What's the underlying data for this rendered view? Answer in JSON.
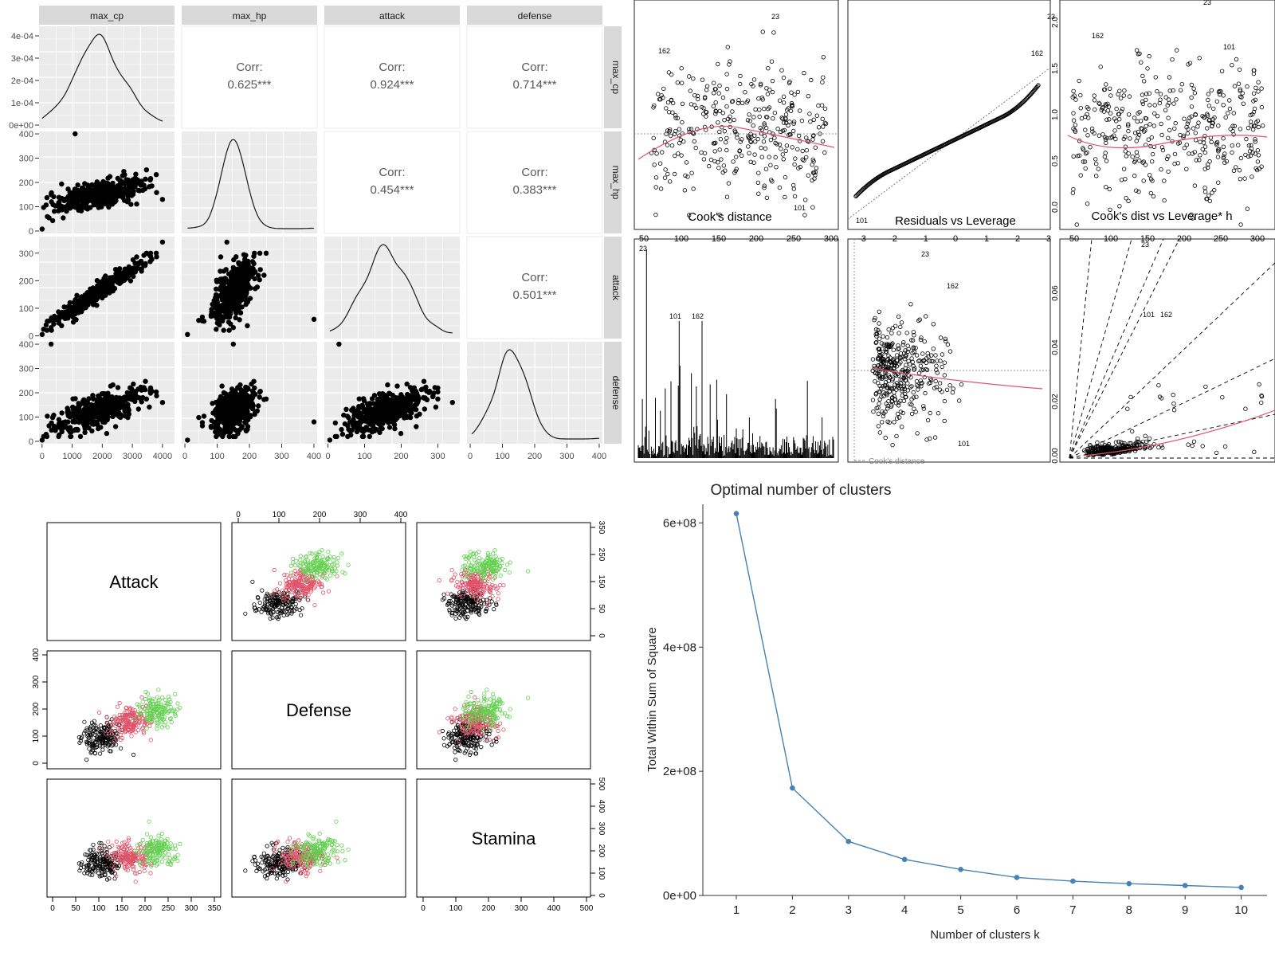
{
  "chart_data": [
    {
      "id": "pairs_ggpairs",
      "type": "scatter",
      "title": "",
      "variables": [
        "max_cp",
        "max_hp",
        "attack",
        "defense"
      ],
      "correlations": [
        {
          "row": "max_cp",
          "col": "max_hp",
          "label": "Corr:",
          "value": "0.625***"
        },
        {
          "row": "max_cp",
          "col": "attack",
          "label": "Corr:",
          "value": "0.924***"
        },
        {
          "row": "max_cp",
          "col": "defense",
          "label": "Corr:",
          "value": "0.714***"
        },
        {
          "row": "max_hp",
          "col": "attack",
          "label": "Corr:",
          "value": "0.454***"
        },
        {
          "row": "max_hp",
          "col": "defense",
          "label": "Corr:",
          "value": "0.383***"
        },
        {
          "row": "attack",
          "col": "defense",
          "label": "Corr:",
          "value": "0.501***"
        }
      ],
      "density_y_ticks": [
        "4e-04",
        "3e-04",
        "2e-04",
        "1e-04",
        "0e+00"
      ],
      "y_ticks": {
        "max_hp": [
          "400",
          "300",
          "200",
          "100",
          "0"
        ],
        "attack": [
          "300",
          "200",
          "100",
          "0"
        ],
        "defense": [
          "400",
          "300",
          "200",
          "100",
          "0"
        ]
      },
      "x_ticks": {
        "max_cp": [
          "0",
          "1000",
          "2000",
          "3000",
          "4000"
        ],
        "max_hp": [
          "0",
          "100",
          "200",
          "300",
          "400"
        ],
        "attack": [
          "0",
          "100",
          "200",
          "300"
        ],
        "defense": [
          "0",
          "100",
          "200",
          "300",
          "400"
        ]
      }
    },
    {
      "id": "regression_diagnostics",
      "type": "scatter",
      "panels": [
        {
          "title": "Cook's distance",
          "x_ticks": [
            "50",
            "100",
            "150",
            "200",
            "250",
            "300"
          ],
          "labels": [
            "23",
            "162",
            "101"
          ]
        },
        {
          "title": "Residuals vs Leverage",
          "x_ticks": [
            "-3",
            "-2",
            "-1",
            "0",
            "1",
            "2",
            "3"
          ],
          "labels": [
            "23",
            "162",
            "101"
          ]
        },
        {
          "title": "Cook's dist vs Leverage* h",
          "x_ticks": [
            "50",
            "100",
            "150",
            "200",
            "250",
            "300"
          ],
          "y_ticks": [
            "2.0",
            "1.5",
            "1.0",
            "0.5",
            "0.0"
          ],
          "labels": [
            "23",
            "162",
            "101"
          ]
        },
        {
          "title": "",
          "labels": [
            "23",
            "101",
            "162"
          ]
        },
        {
          "title": "",
          "legend": "Cook's distance",
          "labels": [
            "23",
            "162",
            "101"
          ]
        },
        {
          "title": "",
          "y_ticks": [
            "0.06",
            "0.04",
            "0.02",
            "0.00"
          ],
          "labels": [
            "23",
            "162",
            "101"
          ]
        }
      ]
    },
    {
      "id": "cluster_pairs",
      "type": "scatter",
      "variables": [
        "Attack",
        "Defense",
        "Stamina"
      ],
      "cluster_colors": [
        "#000000",
        "#DF536B",
        "#61D04F"
      ],
      "top_ticks": [
        "0",
        "100",
        "200",
        "300",
        "400"
      ],
      "right_ticks_row1": [
        "350",
        "250",
        "150",
        "50",
        "0"
      ],
      "left_ticks_row2": [
        "400",
        "300",
        "200",
        "100",
        "0"
      ],
      "right_ticks_row3": [
        "500",
        "400",
        "300",
        "200",
        "100",
        "0"
      ],
      "bottom_ticks_col1": [
        "0",
        "50",
        "100",
        "150",
        "200",
        "250",
        "300",
        "350"
      ],
      "bottom_ticks_col3": [
        "0",
        "100",
        "200",
        "300",
        "400",
        "500"
      ]
    },
    {
      "id": "elbow",
      "type": "line",
      "title": "Optimal number of clusters",
      "xlabel": "Number of clusters k",
      "ylabel": "Total Within Sum of Square",
      "x": [
        1,
        2,
        3,
        4,
        5,
        6,
        7,
        8,
        9,
        10
      ],
      "values": [
        615000000,
        173000000,
        87000000,
        58000000,
        42000000,
        29000000,
        23000000,
        19000000,
        16000000,
        13000000
      ],
      "ylim": [
        0,
        630000000
      ],
      "y_ticks": [
        0,
        200000000,
        400000000,
        600000000
      ],
      "y_tick_labels": [
        "0e+00",
        "2e+08",
        "4e+08",
        "6e+08"
      ],
      "color": "#4682B4"
    }
  ]
}
